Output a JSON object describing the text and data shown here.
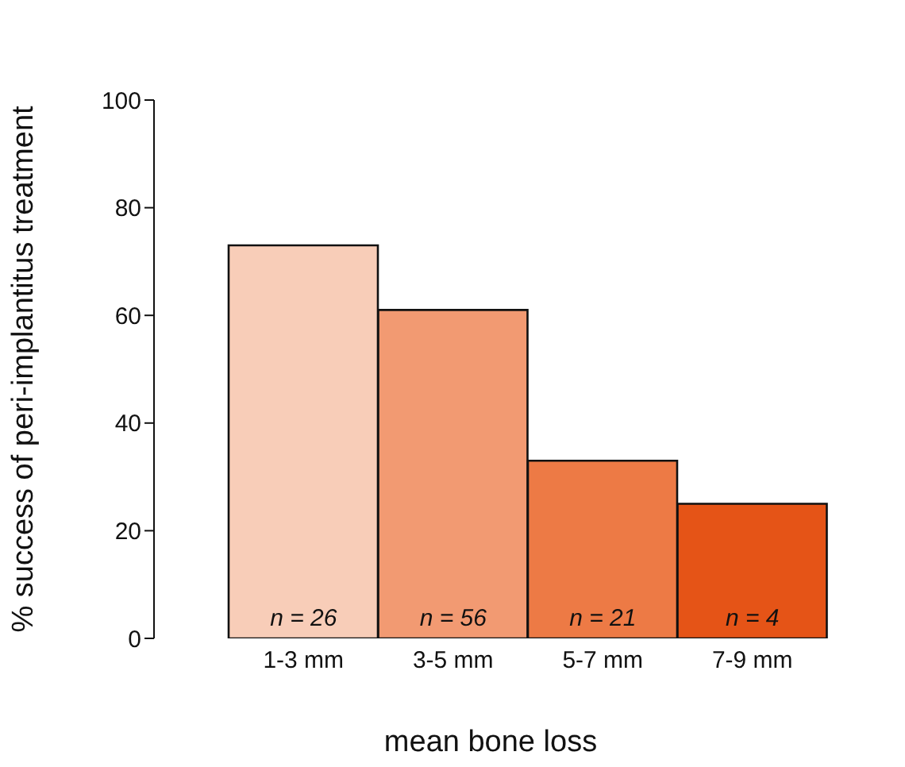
{
  "chart_data": {
    "type": "bar",
    "xlabel": "mean bone loss",
    "ylabel": "% success of peri-implantitus treatment",
    "categories": [
      "1-3 mm",
      "3-5 mm",
      "5-7 mm",
      "7-9 mm"
    ],
    "values": [
      73,
      61,
      33,
      25
    ],
    "colors": [
      "#f8cdb8",
      "#f29a72",
      "#ed7a45",
      "#e55417"
    ],
    "ylim": [
      0,
      100
    ],
    "yticks": [
      0,
      20,
      40,
      60,
      80,
      100
    ],
    "grid": false,
    "legend": false,
    "annotations": [
      "n = 26",
      "n = 56",
      "n = 21",
      "n = 4"
    ]
  }
}
